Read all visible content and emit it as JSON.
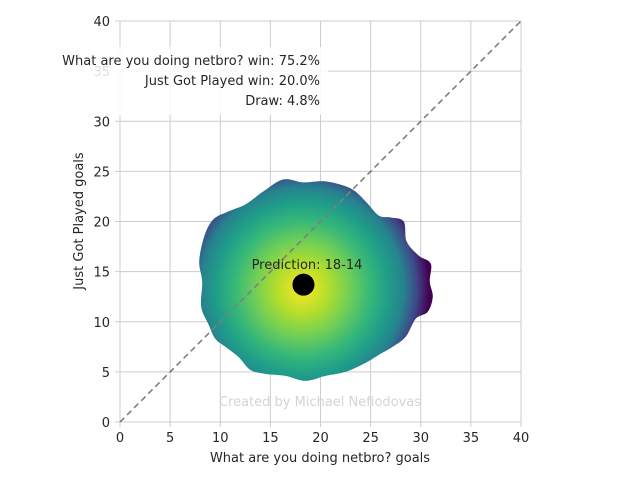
{
  "chart_data": {
    "type": "scatter",
    "xlabel": "What are you doing netbro? goals",
    "ylabel": "Just Got Played goals",
    "xlim": [
      0,
      40
    ],
    "ylim": [
      0,
      40
    ],
    "xticks": [
      0,
      5,
      10,
      15,
      20,
      25,
      30,
      35,
      40
    ],
    "yticks": [
      0,
      5,
      10,
      15,
      20,
      25,
      30,
      35,
      40
    ],
    "grid": true,
    "diagonal_line": {
      "from": [
        0,
        0
      ],
      "to": [
        40,
        40
      ],
      "style": "dashed",
      "color": "#7f7f7f"
    },
    "density": {
      "colormap": "viridis",
      "center": [
        18.2,
        13.3
      ],
      "boundary": [
        [
          23.0,
          23.3
        ],
        [
          24.5,
          22.0
        ],
        [
          25.8,
          20.6
        ],
        [
          27.0,
          20.4
        ],
        [
          28.3,
          20.0
        ],
        [
          28.6,
          18.0
        ],
        [
          29.8,
          16.6
        ],
        [
          31.0,
          15.8
        ],
        [
          30.9,
          14.0
        ],
        [
          31.2,
          12.5
        ],
        [
          30.7,
          11.0
        ],
        [
          29.5,
          10.3
        ],
        [
          28.5,
          8.5
        ],
        [
          27.2,
          7.5
        ],
        [
          26.0,
          6.8
        ],
        [
          24.5,
          5.9
        ],
        [
          22.5,
          5.0
        ],
        [
          20.5,
          4.6
        ],
        [
          18.5,
          4.1
        ],
        [
          16.5,
          4.6
        ],
        [
          14.5,
          4.8
        ],
        [
          13.0,
          5.2
        ],
        [
          11.8,
          6.5
        ],
        [
          10.5,
          7.5
        ],
        [
          9.5,
          8.3
        ],
        [
          8.8,
          9.8
        ],
        [
          8.1,
          11.5
        ],
        [
          8.2,
          14.0
        ],
        [
          7.9,
          16.0
        ],
        [
          8.4,
          18.5
        ],
        [
          9.3,
          20.2
        ],
        [
          10.8,
          21.0
        ],
        [
          12.5,
          21.7
        ],
        [
          14.3,
          23.0
        ],
        [
          16.3,
          24.2
        ],
        [
          18.3,
          23.9
        ],
        [
          20.5,
          24.0
        ]
      ]
    },
    "prediction_point": {
      "x": 18.3,
      "y": 13.7,
      "color": "#000000"
    },
    "prediction_label": "Prediction: 18-14",
    "win_probs": [
      "What are you doing netbro? win: 75.2%",
      "Just Got Played win: 20.0%",
      "Draw: 4.8%"
    ],
    "watermark": "Created by Michael Nefiodovas",
    "colors": {
      "grid": "#cccccc",
      "spine": "#cccccc",
      "text": "#262626",
      "watermark": "#d4d4d4"
    }
  }
}
